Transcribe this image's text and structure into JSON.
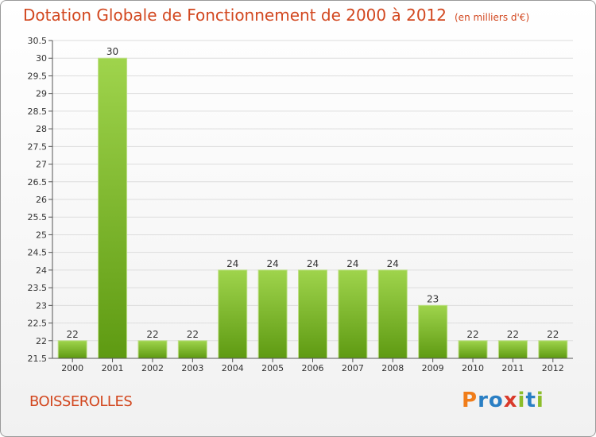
{
  "header": {
    "title": "Dotation Globale de Fonctionnement de 2000 à 2012",
    "subtitle": "(en milliers d'€)"
  },
  "commune": "BOISSEROLLES",
  "logo": {
    "text": "Proxiti",
    "colors": [
      "#f07d1a",
      "#2a7fc4",
      "#2a7fc4",
      "#d93a2b",
      "#8cbd2a",
      "#2a7fc4",
      "#8cbd2a"
    ]
  },
  "colors": {
    "accent": "#d2471f",
    "bar_top": "#9fd44c",
    "bar_bottom": "#5e9a12"
  },
  "chart_data": {
    "type": "bar",
    "title": "Dotation Globale de Fonctionnement de 2000 à 2012",
    "categories": [
      "2000",
      "2001",
      "2002",
      "2003",
      "2004",
      "2005",
      "2006",
      "2007",
      "2008",
      "2009",
      "2010",
      "2011",
      "2012"
    ],
    "values": [
      22,
      30,
      22,
      22,
      24,
      24,
      24,
      24,
      24,
      23,
      22,
      22,
      22
    ],
    "value_labels": [
      "22",
      "30",
      "22",
      "22",
      "24",
      "24",
      "24",
      "24",
      "24",
      "23",
      "22",
      "22",
      "22"
    ],
    "ylim": [
      21.5,
      30.5
    ],
    "yticks": [
      "21.5",
      "22",
      "22.5",
      "23",
      "23.5",
      "24",
      "24.5",
      "25",
      "25.5",
      "26",
      "26.5",
      "27",
      "27.5",
      "28",
      "28.5",
      "29",
      "29.5",
      "30",
      "30.5"
    ],
    "xlabel": "",
    "ylabel": ""
  }
}
